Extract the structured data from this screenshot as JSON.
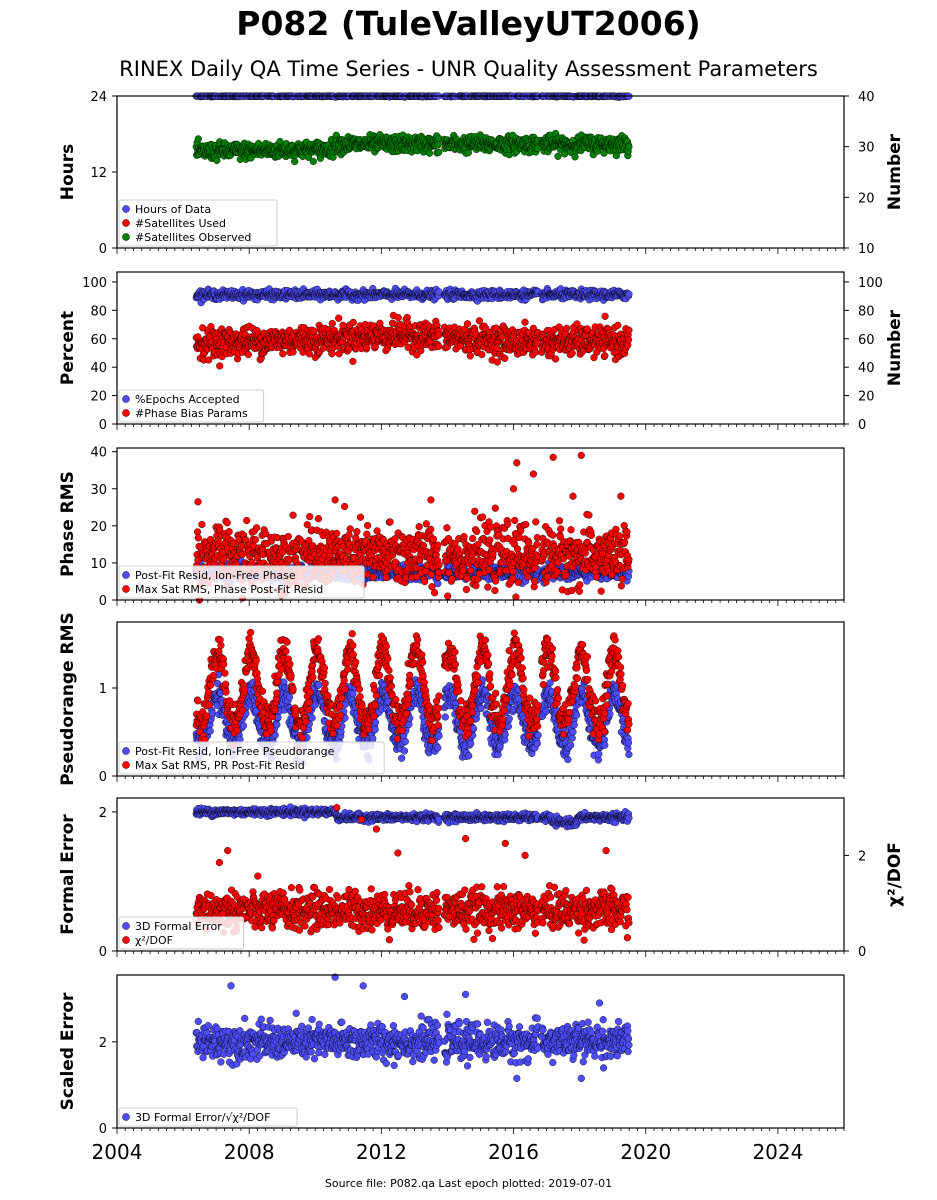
{
  "title": "P082 (TuleValleyUT2006)",
  "subtitle": "RINEX Daily QA Time Series - UNR Quality Assessment Parameters",
  "footer": "Source file: P082.qa Last epoch plotted: 2019-07-01",
  "colors": {
    "blue": "#4d4dff",
    "red": "#ff0000",
    "green": "#008000",
    "edge": "#000000"
  },
  "chart_data": [
    {
      "type": "scatter",
      "ylabel": "Hours",
      "ylabel_right": "Number",
      "xlim": [
        2004,
        2026
      ],
      "ylim": [
        0,
        24
      ],
      "yticks": [
        "0",
        "12",
        "24"
      ],
      "ylim_right": [
        10,
        40
      ],
      "yticks_right": [
        "10",
        "20",
        "30",
        "40"
      ],
      "legend": [
        "Hours of Data",
        "#Satellites Used",
        "#Satellites Observed"
      ],
      "series": [
        {
          "name": "Hours of Data",
          "color": "blue",
          "axis": "left",
          "x_range": [
            2006.4,
            2019.5
          ],
          "gaps": [
            [
              2013.75,
              2013.9
            ],
            [
              2016.75,
              2016.85
            ]
          ],
          "typical": 24,
          "spread": 0.05
        },
        {
          "name": "#Satellites Observed",
          "color": "green",
          "axis": "right",
          "x_range": [
            2006.4,
            2019.5
          ],
          "gaps": [
            [
              2013.75,
              2013.9
            ],
            [
              2016.75,
              2016.85
            ]
          ],
          "trend": [
            [
              2006.4,
              29.0
            ],
            [
              2010.5,
              29.5
            ],
            [
              2010.6,
              30.5
            ],
            [
              2019.5,
              30.5
            ]
          ],
          "spread": 0.8
        }
      ]
    },
    {
      "type": "scatter",
      "ylabel": "Percent",
      "ylabel_right": "Number",
      "xlim": [
        2004,
        2026
      ],
      "ylim": [
        0,
        107
      ],
      "yticks": [
        "0",
        "20",
        "40",
        "60",
        "80",
        "100"
      ],
      "yticks_right": [
        "0",
        "20",
        "40",
        "60",
        "80",
        "100"
      ],
      "legend": [
        "%Epochs Accepted",
        "#Phase Bias Params"
      ],
      "series": [
        {
          "name": "%Epochs Accepted",
          "color": "blue",
          "axis": "left",
          "x_range": [
            2006.4,
            2019.5
          ],
          "gaps": [
            [
              2013.75,
              2013.9
            ],
            [
              2016.75,
              2016.85
            ]
          ],
          "typical": 91,
          "spread": 1.5
        },
        {
          "name": "#Phase Bias Params",
          "color": "red",
          "axis": "left",
          "x_range": [
            2006.4,
            2019.5
          ],
          "gaps": [
            [
              2013.75,
              2013.9
            ],
            [
              2016.75,
              2016.85
            ]
          ],
          "trend": [
            [
              2006.4,
              57
            ],
            [
              2010.5,
              60
            ],
            [
              2012.5,
              63
            ],
            [
              2016,
              58
            ],
            [
              2019.5,
              58
            ]
          ],
          "spread": 5
        }
      ]
    },
    {
      "type": "scatter",
      "ylabel": "Phase RMS",
      "xlim": [
        2004,
        2026
      ],
      "ylim": [
        0,
        41
      ],
      "yticks": [
        "0",
        "10",
        "20",
        "30",
        "40"
      ],
      "legend": [
        "Post-Fit Resid, Ion-Free Phase",
        "Max Sat RMS, Phase Post-Fit Resid"
      ],
      "series": [
        {
          "name": "Post-Fit Resid, Ion-Free Phase",
          "color": "blue",
          "axis": "left",
          "x_range": [
            2006.4,
            2019.5
          ],
          "gaps": [
            [
              2013.75,
              2013.9
            ],
            [
              2016.75,
              2016.85
            ]
          ],
          "typical": 7.5,
          "spread": 1
        },
        {
          "name": "Max Sat RMS, Phase Post-Fit Resid",
          "color": "red",
          "axis": "left",
          "x_range": [
            2006.4,
            2019.5
          ],
          "gaps": [
            [
              2013.75,
              2013.9
            ],
            [
              2016.75,
              2016.85
            ]
          ],
          "typical": 12,
          "spread": 4,
          "outliers": [
            [
              2006.45,
              26.5
            ],
            [
              2010.6,
              27
            ],
            [
              2013.5,
              27
            ],
            [
              2016.1,
              37
            ],
            [
              2016.6,
              34
            ],
            [
              2017.2,
              38.5
            ],
            [
              2018.05,
              39
            ],
            [
              2017.8,
              28
            ],
            [
              2019.25,
              28
            ],
            [
              2016.0,
              30
            ]
          ]
        }
      ]
    },
    {
      "type": "scatter",
      "ylabel": "Pseudorange RMS",
      "xlim": [
        2004,
        2026
      ],
      "ylim": [
        0,
        1.75
      ],
      "yticks": [
        "0",
        "1"
      ],
      "legend": [
        "Post-Fit Resid, Ion-Free Pseudorange",
        "Max Sat RMS, PR Post-Fit Resid"
      ],
      "series": [
        {
          "name": "Post-Fit Resid, Ion-Free Pseudorange",
          "color": "blue",
          "axis": "left",
          "x_range": [
            2006.4,
            2019.5
          ],
          "gaps": [
            [
              2013.75,
              2013.9
            ],
            [
              2016.75,
              2016.85
            ]
          ],
          "seasonal": {
            "base": 0.6,
            "amp": 0.25,
            "amp_decay": 0.1
          },
          "spread": 0.08
        },
        {
          "name": "Max Sat RMS, PR Post-Fit Resid",
          "color": "red",
          "axis": "left",
          "x_range": [
            2006.4,
            2019.5
          ],
          "gaps": [
            [
              2013.75,
              2013.9
            ],
            [
              2016.75,
              2016.85
            ]
          ],
          "seasonal": {
            "base": 0.95,
            "amp": 0.35,
            "amp_decay": 0.12
          },
          "spread": 0.1
        }
      ]
    },
    {
      "type": "scatter",
      "ylabel": "Formal Error",
      "ylabel_right": "χ²/DOF",
      "xlim": [
        2004,
        2026
      ],
      "ylim": [
        0,
        2.2
      ],
      "yticks": [
        "0",
        "2"
      ],
      "ylim_right": [
        0,
        3.2
      ],
      "yticks_right": [
        "0",
        "2"
      ],
      "legend": [
        "3D Formal Error",
        "χ²/DOF"
      ],
      "series": [
        {
          "name": "3D Formal Error",
          "color": "blue",
          "axis": "left",
          "x_range": [
            2006.4,
            2019.5
          ],
          "gaps": [
            [
              2013.75,
              2013.9
            ],
            [
              2016.75,
              2016.85
            ]
          ],
          "trend": [
            [
              2006.4,
              2.0
            ],
            [
              2010.6,
              2.0
            ],
            [
              2010.7,
              1.92
            ],
            [
              2017.1,
              1.92
            ],
            [
              2017.2,
              1.85
            ],
            [
              2017.9,
              1.85
            ],
            [
              2018.0,
              1.92
            ],
            [
              2019.5,
              1.92
            ]
          ],
          "spread": 0.025
        },
        {
          "name": "χ²/DOF",
          "color": "red",
          "axis": "right",
          "x_range": [
            2006.4,
            2019.5
          ],
          "gaps": [
            [
              2013.75,
              2013.9
            ],
            [
              2016.75,
              2016.85
            ]
          ],
          "typical": 0.85,
          "spread": 0.2,
          "outliers": [
            [
              2007.1,
              1.85
            ],
            [
              2007.35,
              2.1
            ],
            [
              2010.65,
              3.0
            ],
            [
              2011.4,
              2.75
            ],
            [
              2011.85,
              2.55
            ],
            [
              2014.55,
              2.35
            ],
            [
              2015.75,
              2.25
            ],
            [
              2018.8,
              2.1
            ],
            [
              2016.35,
              2.0
            ],
            [
              2012.5,
              2.05
            ]
          ]
        }
      ]
    },
    {
      "type": "scatter",
      "ylabel": "Scaled Error",
      "xlim": [
        2004,
        2026
      ],
      "ylim": [
        0,
        3.55
      ],
      "yticks": [
        "0",
        "2"
      ],
      "xticks": [
        "2004",
        "2008",
        "2012",
        "2016",
        "2020",
        "2024"
      ],
      "legend": [
        "3D Formal Error/√χ²/DOF"
      ],
      "series": [
        {
          "name": "3D Formal Error/√χ²/DOF",
          "color": "blue",
          "axis": "left",
          "x_range": [
            2006.4,
            2019.5
          ],
          "gaps": [
            [
              2013.75,
              2013.9
            ],
            [
              2016.75,
              2016.85
            ]
          ],
          "typical": 2.0,
          "spread": 0.2,
          "outliers": [
            [
              2007.45,
              3.3
            ],
            [
              2010.6,
              3.5
            ],
            [
              2011.45,
              3.3
            ],
            [
              2014.55,
              3.1
            ],
            [
              2012.7,
              3.05
            ],
            [
              2018.6,
              2.9
            ],
            [
              2016.1,
              1.15
            ],
            [
              2018.05,
              1.15
            ]
          ]
        }
      ]
    }
  ]
}
